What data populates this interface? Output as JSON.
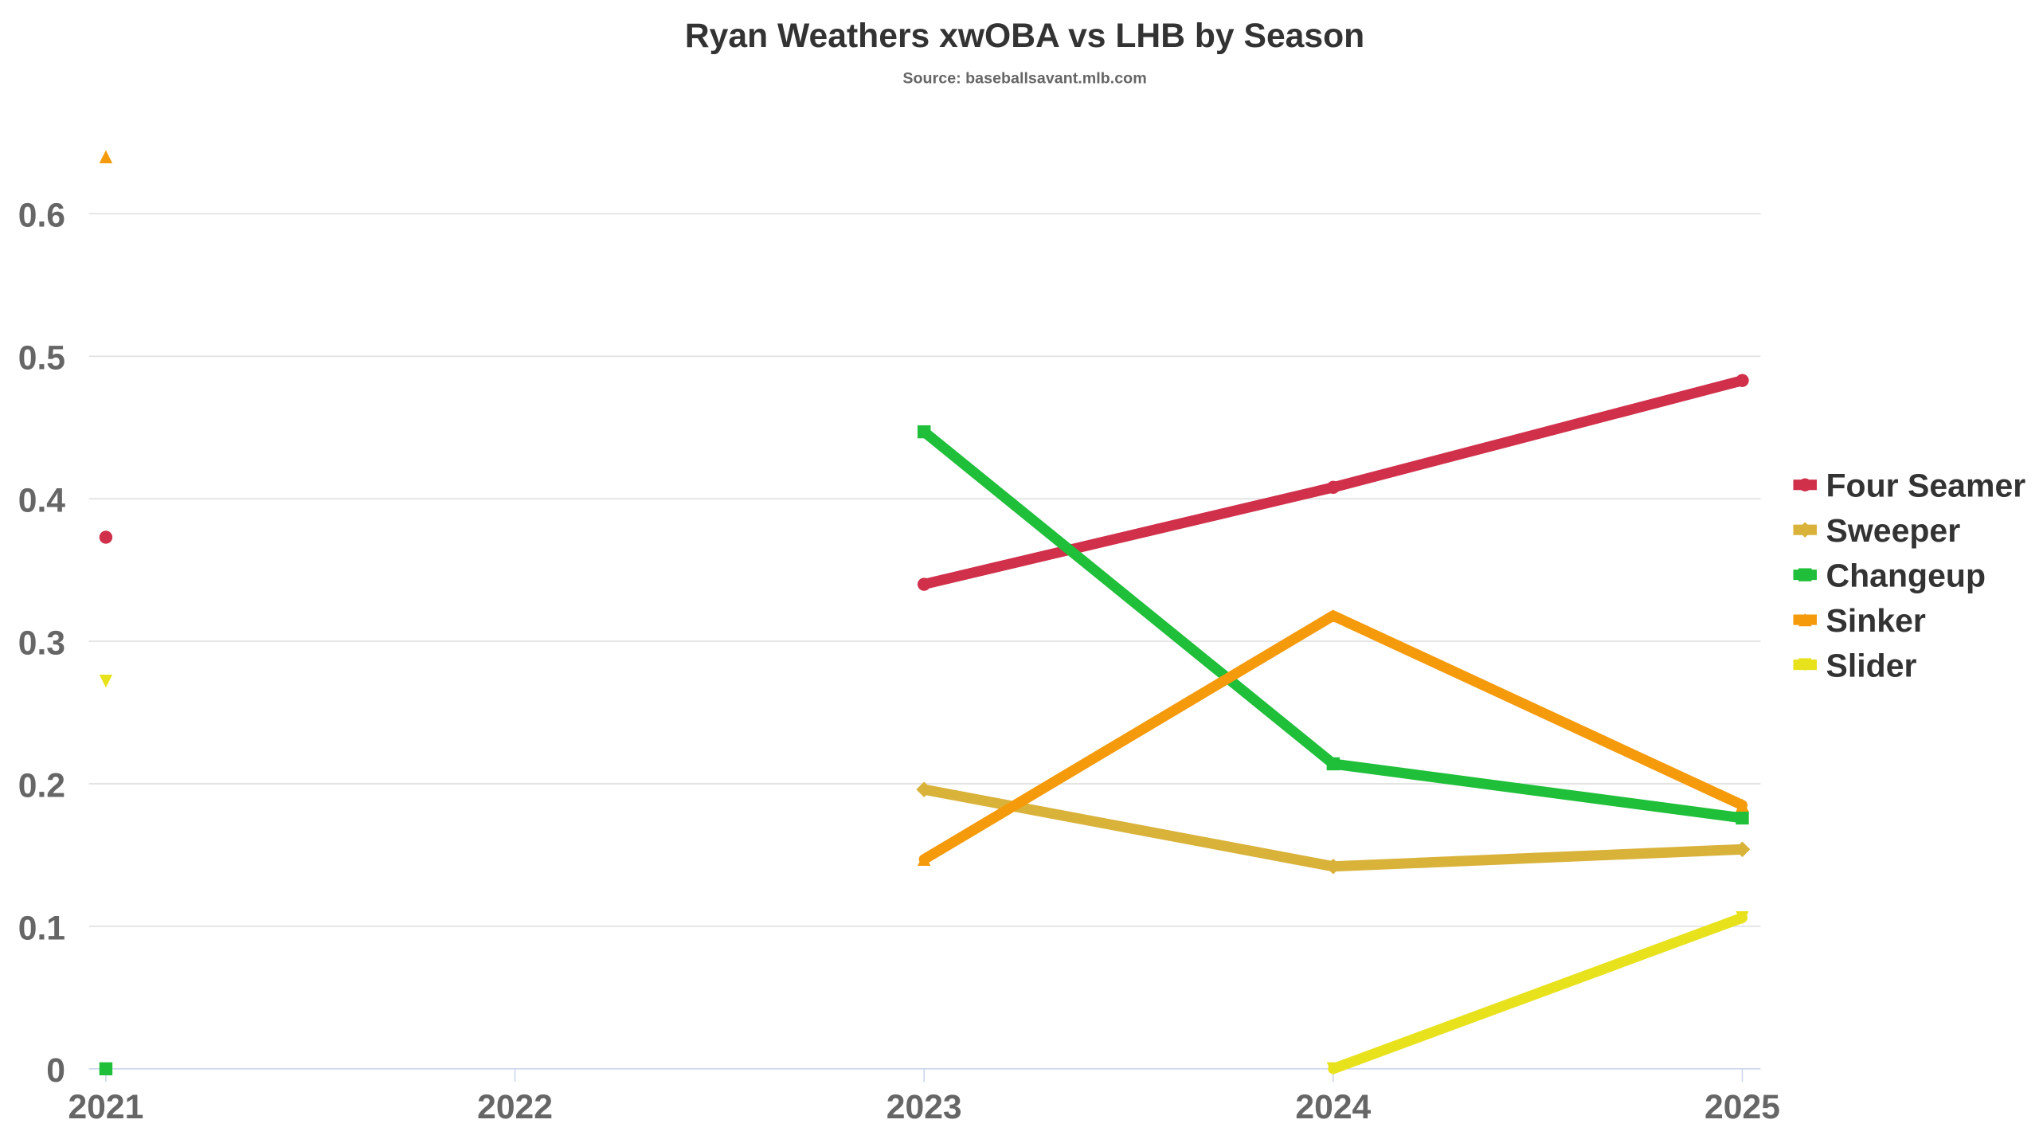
{
  "chart_data": {
    "type": "line",
    "title": "Ryan Weathers xwOBA vs LHB by Season",
    "subtitle": "Source: baseballsavant.mlb.com",
    "xlabel": "",
    "ylabel": "",
    "categories": [
      "2021",
      "2022",
      "2023",
      "2024",
      "2025"
    ],
    "ylim": [
      0,
      0.6
    ],
    "yticks": [
      0,
      0.1,
      0.2,
      0.3,
      0.4,
      0.5,
      0.6
    ],
    "ytick_labels": [
      "0",
      "0.1",
      "0.2",
      "0.3",
      "0.4",
      "0.5",
      "0.6"
    ],
    "grid": true,
    "legend_position": "right",
    "series": [
      {
        "name": "Four Seamer",
        "color": "#d0304a",
        "marker": "circle",
        "values": [
          0.373,
          null,
          0.34,
          0.408,
          0.483
        ]
      },
      {
        "name": "Sweeper",
        "color": "#d9b23a",
        "marker": "diamond",
        "values": [
          null,
          null,
          0.196,
          0.142,
          0.154
        ]
      },
      {
        "name": "Changeup",
        "color": "#1fbf3a",
        "marker": "square",
        "values": [
          0.0,
          null,
          0.447,
          0.214,
          0.176
        ]
      },
      {
        "name": "Sinker",
        "color": "#f59a0b",
        "marker": "triangle",
        "values": [
          0.64,
          null,
          0.147,
          0.318,
          0.185
        ]
      },
      {
        "name": "Slider",
        "color": "#e8e21c",
        "marker": "triangle-down",
        "values": [
          0.272,
          null,
          null,
          0.0,
          0.106
        ]
      }
    ]
  }
}
